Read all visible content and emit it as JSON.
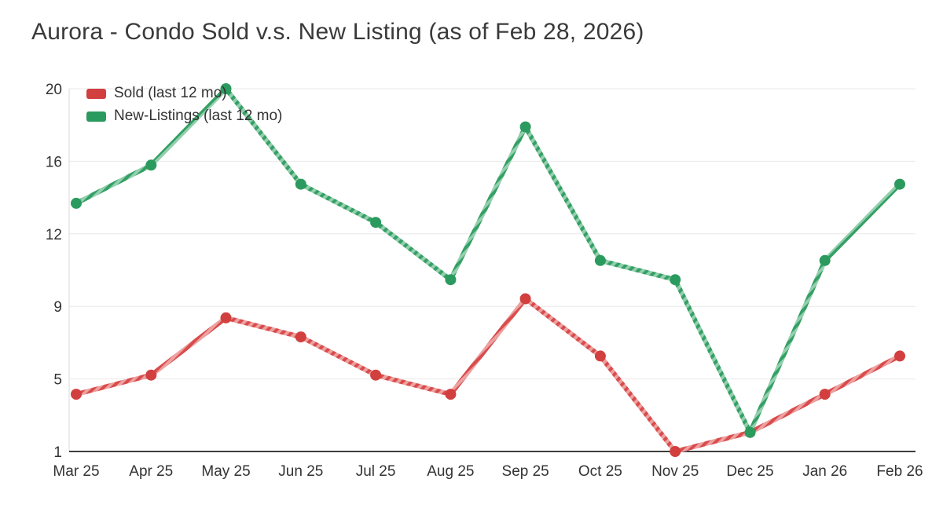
{
  "header": {
    "title": "Aurora - Condo Sold v.s. New Listing (as of Feb 28, 2026)"
  },
  "chart_data": {
    "type": "line",
    "title": "Aurora - Condo Sold v.s. New Listing (as of Feb 28, 2026)",
    "categories": [
      "Mar 25",
      "Apr 25",
      "May 25",
      "Jun 25",
      "Jul 25",
      "Aug 25",
      "Sep 25",
      "Oct 25",
      "Nov 25",
      "Dec 25",
      "Jan 26",
      "Feb 26"
    ],
    "series": [
      {
        "name": "Sold (last 12 mo)",
        "values": [
          4,
          5,
          8,
          7,
          5,
          4,
          9,
          6,
          1,
          2,
          4,
          6
        ],
        "color": "#d94c4c",
        "color_light": "#eda0a0",
        "marker_color": "#d23f3f"
      },
      {
        "name": "New-Listings (last 12 mo)",
        "values": [
          14,
          16,
          20,
          15,
          13,
          10,
          18,
          11,
          10,
          2,
          11,
          15
        ],
        "color": "#35a065",
        "color_light": "#93cfae",
        "marker_color": "#2b9a5e"
      }
    ],
    "ylim": [
      1,
      20
    ],
    "yticks": [
      1,
      5,
      9,
      12,
      16,
      20
    ],
    "xlabel": "",
    "ylabel": "",
    "grid": true,
    "legend_position": "top-left",
    "line_style": "diagonal-striped",
    "colors": {
      "grid": "#e8e8e8",
      "axis": "#3d3d3d",
      "tick_text": "#333333"
    }
  }
}
